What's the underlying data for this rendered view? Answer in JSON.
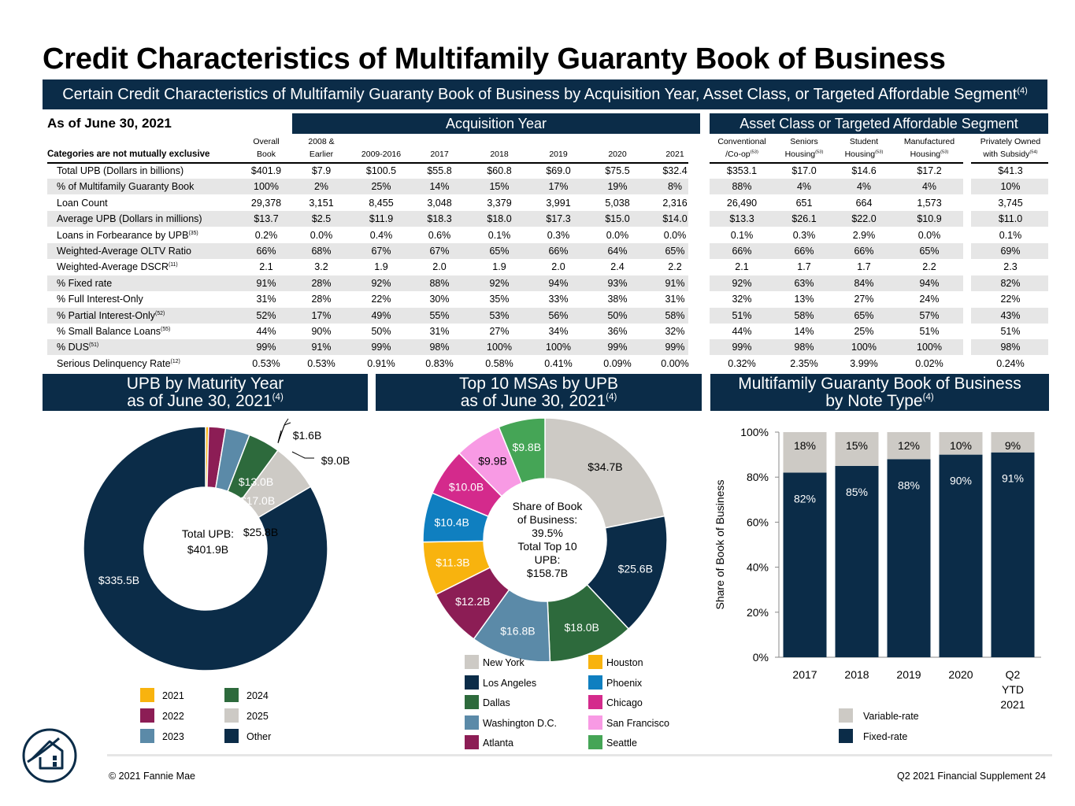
{
  "title": "Credit Characteristics of Multifamily Guaranty Book of Business",
  "subtitle": "Certain Credit Characteristics of Multifamily Guaranty Book of Business by Acquisition Year, Asset Class, or Targeted Affordable Segment",
  "subtitle_note": "(4)",
  "as_of": "As of June 30, 2021",
  "acq_header": "Acquisition Year",
  "asset_header": "Asset Class or Targeted Affordable Segment",
  "categories_note": "Categories are not mutually exclusive",
  "columns": [
    {
      "line1": "Overall",
      "line2": "Book",
      "sup": ""
    },
    {
      "line1": "2008 &",
      "line2": "Earlier",
      "sup": ""
    },
    {
      "line1": "",
      "line2": "2009-2016",
      "sup": ""
    },
    {
      "line1": "",
      "line2": "2017",
      "sup": ""
    },
    {
      "line1": "",
      "line2": "2018",
      "sup": ""
    },
    {
      "line1": "",
      "line2": "2019",
      "sup": ""
    },
    {
      "line1": "",
      "line2": "2020",
      "sup": ""
    },
    {
      "line1": "",
      "line2": "2021",
      "sup": ""
    },
    {
      "line1": "Conventional",
      "line2": "/Co-op",
      "sup": "(53)"
    },
    {
      "line1": "Seniors",
      "line2": "Housing",
      "sup": "(53)"
    },
    {
      "line1": "Student",
      "line2": "Housing",
      "sup": "(53)"
    },
    {
      "line1": "Manufactured",
      "line2": "Housing",
      "sup": "(53)"
    },
    {
      "line1": "Privately Owned",
      "line2": "with Subsidy",
      "sup": "(54)"
    }
  ],
  "rows": [
    {
      "label": "Total UPB (Dollars in billions)",
      "sup": "",
      "values": [
        "$401.9",
        "$7.9",
        "$100.5",
        "$55.8",
        "$60.8",
        "$69.0",
        "$75.5",
        "$32.4",
        "$353.1",
        "$17.0",
        "$14.6",
        "$17.2",
        "$41.3"
      ]
    },
    {
      "label": "% of Multifamily Guaranty Book",
      "sup": "",
      "values": [
        "100%",
        "2%",
        "25%",
        "14%",
        "15%",
        "17%",
        "19%",
        "8%",
        "88%",
        "4%",
        "4%",
        "4%",
        "10%"
      ]
    },
    {
      "label": "Loan Count",
      "sup": "",
      "values": [
        "29,378",
        "3,151",
        "8,455",
        "3,048",
        "3,379",
        "3,991",
        "5,038",
        "2,316",
        "26,490",
        "651",
        "664",
        "1,573",
        "3,745"
      ]
    },
    {
      "label": "Average UPB (Dollars in millions)",
      "sup": "",
      "values": [
        "$13.7",
        "$2.5",
        "$11.9",
        "$18.3",
        "$18.0",
        "$17.3",
        "$15.0",
        "$14.0",
        "$13.3",
        "$26.1",
        "$22.0",
        "$10.9",
        "$11.0"
      ]
    },
    {
      "label": "Loans in Forbearance by UPB",
      "sup": "(35)",
      "values": [
        "0.2%",
        "0.0%",
        "0.4%",
        "0.6%",
        "0.1%",
        "0.3%",
        "0.0%",
        "0.0%",
        "0.1%",
        "0.3%",
        "2.9%",
        "0.0%",
        "0.1%"
      ]
    },
    {
      "label": "Weighted-Average OLTV Ratio",
      "sup": "",
      "values": [
        "66%",
        "68%",
        "67%",
        "67%",
        "65%",
        "66%",
        "64%",
        "65%",
        "66%",
        "66%",
        "66%",
        "65%",
        "69%"
      ]
    },
    {
      "label": "Weighted-Average DSCR",
      "sup": "(11)",
      "values": [
        "2.1",
        "3.2",
        "1.9",
        "2.0",
        "1.9",
        "2.0",
        "2.4",
        "2.2",
        "2.1",
        "1.7",
        "1.7",
        "2.2",
        "2.3"
      ]
    },
    {
      "label": "% Fixed rate",
      "sup": "",
      "values": [
        "91%",
        "28%",
        "92%",
        "88%",
        "92%",
        "94%",
        "93%",
        "91%",
        "92%",
        "63%",
        "84%",
        "94%",
        "82%"
      ]
    },
    {
      "label": "% Full Interest-Only",
      "sup": "",
      "values": [
        "31%",
        "28%",
        "22%",
        "30%",
        "35%",
        "33%",
        "38%",
        "31%",
        "32%",
        "13%",
        "27%",
        "24%",
        "22%"
      ]
    },
    {
      "label": "% Partial Interest-Only",
      "sup": "(52)",
      "values": [
        "52%",
        "17%",
        "49%",
        "55%",
        "53%",
        "56%",
        "50%",
        "58%",
        "51%",
        "58%",
        "65%",
        "57%",
        "43%"
      ]
    },
    {
      "label": "% Small Balance Loans",
      "sup": "(55)",
      "values": [
        "44%",
        "90%",
        "50%",
        "31%",
        "27%",
        "34%",
        "36%",
        "32%",
        "44%",
        "14%",
        "25%",
        "51%",
        "51%"
      ]
    },
    {
      "label": "% DUS",
      "sup": "(51)",
      "values": [
        "99%",
        "91%",
        "99%",
        "98%",
        "100%",
        "100%",
        "99%",
        "99%",
        "99%",
        "98%",
        "100%",
        "100%",
        "98%"
      ]
    },
    {
      "label": "Serious Delinquency Rate",
      "sup": "(12)",
      "values": [
        "0.53%",
        "0.53%",
        "0.91%",
        "0.83%",
        "0.58%",
        "0.41%",
        "0.09%",
        "0.00%",
        "0.32%",
        "2.35%",
        "3.99%",
        "0.02%",
        "0.24%"
      ]
    }
  ],
  "panel1": {
    "title_line1": "UPB by Maturity Year",
    "title_line2": "as of June 30, 2021",
    "note": "(4)"
  },
  "panel2": {
    "title_line1": "Top 10 MSAs by UPB",
    "title_line2": "as of June 30, 2021",
    "note": "(4)"
  },
  "panel3": {
    "title_line1": "Multifamily Guaranty Book of Business",
    "title_line2": "by Note Type",
    "note": "(4)"
  },
  "chart_data": [
    {
      "type": "pie",
      "center_line1": "Total UPB:",
      "center_line2": "$401.9B",
      "slices": [
        {
          "name": "2021",
          "value": 1.6,
          "label": "$1.6B",
          "color": "#f8b30e"
        },
        {
          "name": "2022",
          "value": 9.0,
          "label": "$9.0B",
          "color": "#8c1d55"
        },
        {
          "name": "2023",
          "value": 13.0,
          "label": "$13.0B",
          "color": "#5b8aa8"
        },
        {
          "name": "2024",
          "value": 17.0,
          "label": "$17.0B",
          "color": "#2d6a3c"
        },
        {
          "name": "2025",
          "value": 25.8,
          "label": "$25.8B",
          "color": "#cdcac5"
        },
        {
          "name": "Other",
          "value": 335.5,
          "label": "$335.5B",
          "color": "#0b2c48"
        }
      ]
    },
    {
      "type": "pie",
      "center_lines": [
        "Share of Book",
        "of Business:",
        "39.5%",
        "Total Top 10",
        "UPB:",
        "$158.7B"
      ],
      "slices": [
        {
          "name": "New York",
          "value": 34.7,
          "label": "$34.7B",
          "color": "#cdcac5"
        },
        {
          "name": "Los Angeles",
          "value": 25.6,
          "label": "$25.6B",
          "color": "#0b2c48"
        },
        {
          "name": "Dallas",
          "value": 18.0,
          "label": "$18.0B",
          "color": "#2d6a3c"
        },
        {
          "name": "Washington D.C.",
          "value": 16.8,
          "label": "$16.8B",
          "color": "#5b8aa8"
        },
        {
          "name": "Atlanta",
          "value": 12.2,
          "label": "$12.2B",
          "color": "#8c1d55"
        },
        {
          "name": "Houston",
          "value": 11.3,
          "label": "$11.3B",
          "color": "#f8b30e"
        },
        {
          "name": "Phoenix",
          "value": 10.4,
          "label": "$10.4B",
          "color": "#0f7fc0"
        },
        {
          "name": "Chicago",
          "value": 10.0,
          "label": "$10.0B",
          "color": "#d42a8c"
        },
        {
          "name": "San Francisco",
          "value": 9.9,
          "label": "$9.9B",
          "color": "#f89ae4"
        },
        {
          "name": "Seattle",
          "value": 9.8,
          "label": "$9.8B",
          "color": "#45a556"
        }
      ]
    },
    {
      "type": "bar",
      "stacked": true,
      "categories": [
        "2017",
        "2018",
        "2019",
        "2020",
        "Q2 YTD 2021"
      ],
      "series": [
        {
          "name": "Fixed-rate",
          "values": [
            82,
            85,
            88,
            90,
            91
          ],
          "color": "#0b2c48"
        },
        {
          "name": "Variable-rate",
          "values": [
            18,
            15,
            12,
            10,
            9
          ],
          "color": "#cdcac5"
        }
      ],
      "ylabel": "Share of Book of Business",
      "ylim": [
        0,
        100
      ],
      "yticks": [
        "0%",
        "20%",
        "40%",
        "60%",
        "80%",
        "100%"
      ]
    }
  ],
  "footer_left": "© 2021 Fannie Mae",
  "footer_right": "Q2 2021 Financial Supplement   24"
}
